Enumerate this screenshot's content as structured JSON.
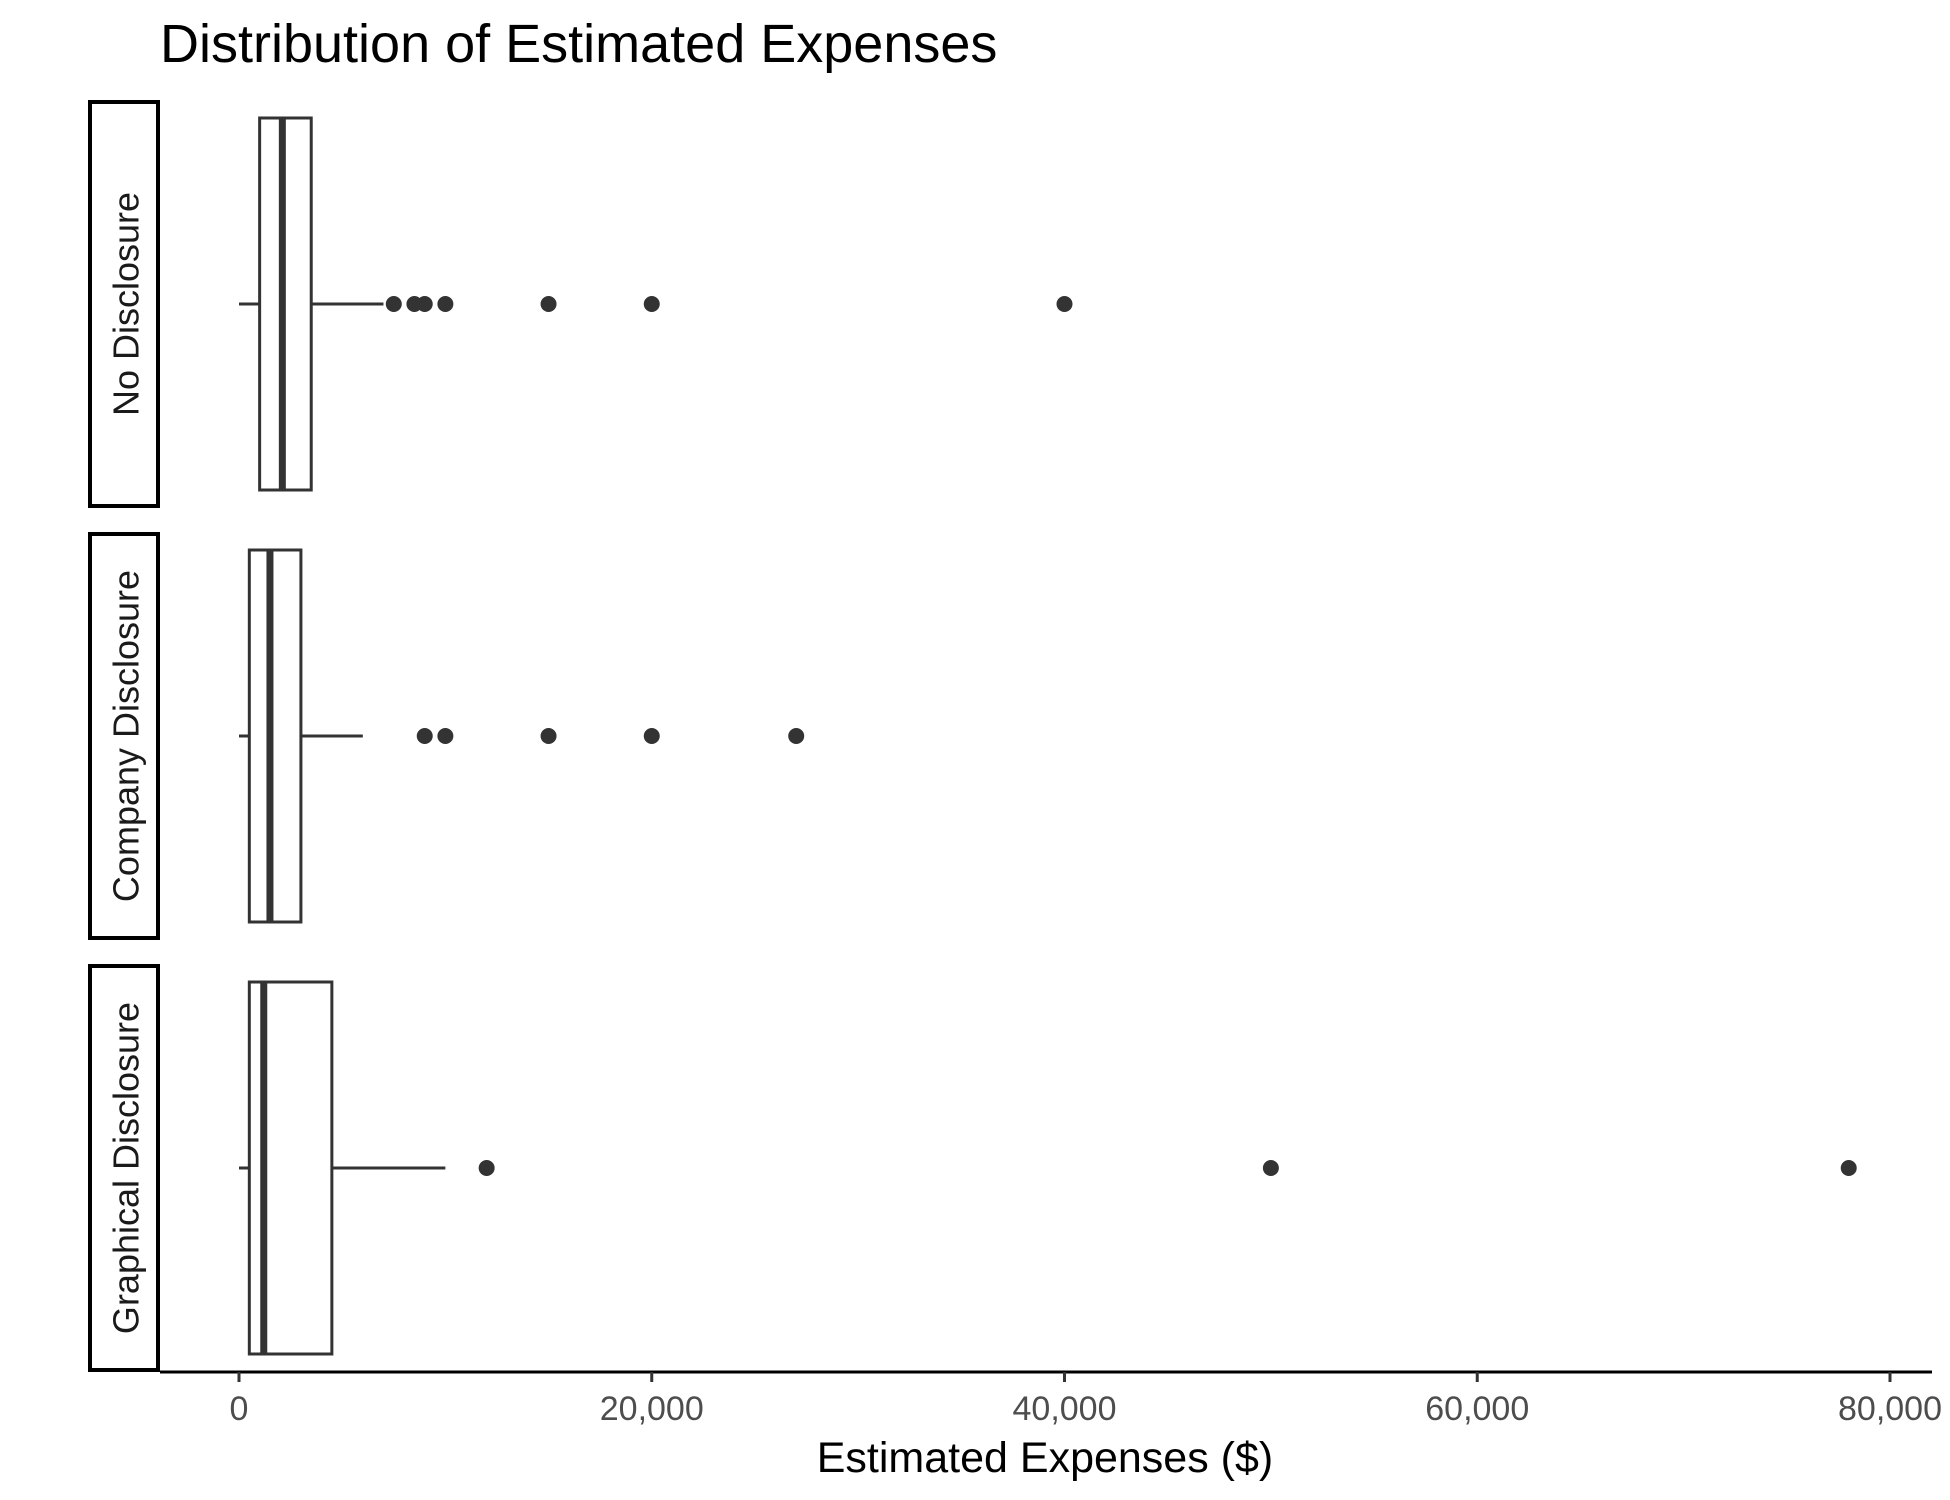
{
  "chart_data": {
    "type": "boxplot",
    "title": "Distribution of Estimated Expenses",
    "xlabel": "Estimated Expenses ($)",
    "ylabel": "",
    "xlim": [
      -1000,
      80000
    ],
    "x_ticks": [
      0,
      20000,
      40000,
      60000,
      80000
    ],
    "x_tick_labels": [
      "0",
      "20,000",
      "40,000",
      "60,000",
      "80,000"
    ],
    "grid": false,
    "legend": "none",
    "facets": [
      {
        "name": "No Disclosure",
        "whisker_low": 0,
        "q1": 1000,
        "median": 2100,
        "q3": 3500,
        "whisker_high": 7000,
        "outliers": [
          7500,
          8500,
          9000,
          10000,
          15000,
          20000,
          40000
        ]
      },
      {
        "name": "Company Disclosure",
        "whisker_low": 0,
        "q1": 500,
        "median": 1500,
        "q3": 3000,
        "whisker_high": 6000,
        "outliers": [
          9000,
          10000,
          15000,
          20000,
          27000
        ]
      },
      {
        "name": "Graphical Disclosure",
        "whisker_low": 0,
        "q1": 500,
        "median": 1200,
        "q3": 4500,
        "whisker_high": 10000,
        "outliers": [
          12000,
          50000,
          78000
        ]
      }
    ],
    "colors": {
      "box_outline": "#333333",
      "outlier": "#333333",
      "axis": "#000000",
      "box_fill": "#ffffff"
    }
  }
}
